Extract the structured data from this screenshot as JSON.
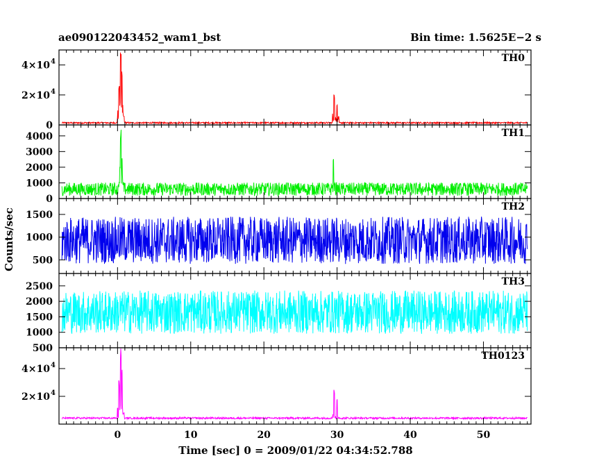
{
  "header": {
    "title": "ae090122043452_wam1_bst",
    "bin_time": "Bin time: 1.5625E−2 s"
  },
  "chart_data": {
    "type": "line",
    "xlabel": "Time [sec] 0 = 2009/01/22 04:34:52.788",
    "ylabel": "Counts/sec",
    "xlim": [
      -8,
      56.5
    ],
    "x_ticks": [
      0,
      10,
      20,
      30,
      40,
      50
    ],
    "x_ticks_label": [
      "0",
      "10",
      "20",
      "30",
      "40",
      "50"
    ],
    "panels": [
      {
        "label": "TH0",
        "color": "#ff0000",
        "ylim": [
          0,
          50000
        ],
        "y_ticks": [
          0,
          20000,
          40000
        ],
        "y_ticks_label": [
          "0",
          "2×10",
          "4×10"
        ],
        "y_ticks_exp": [
          "",
          "4",
          "4"
        ],
        "baseline": 1400,
        "noise": 500,
        "peaks": [
          {
            "t": 0.2,
            "v": 27000
          },
          {
            "t": 0.45,
            "v": 50000
          },
          {
            "t": 0.6,
            "v": 36000
          },
          {
            "t": 0.85,
            "v": 6000
          },
          {
            "t": 29.6,
            "v": 21000
          },
          {
            "t": 30.0,
            "v": 15000
          }
        ]
      },
      {
        "label": "TH1",
        "color": "#00ee00",
        "ylim": [
          0,
          4700
        ],
        "y_ticks": [
          0,
          1000,
          2000,
          3000,
          4000
        ],
        "y_ticks_label": [
          "0",
          "1000",
          "2000",
          "3000",
          "4000"
        ],
        "y_ticks_exp": [
          "",
          "",
          "",
          "",
          ""
        ],
        "baseline": 600,
        "noise": 420,
        "peaks": [
          {
            "t": 0.35,
            "v": 2200
          },
          {
            "t": 0.45,
            "v": 4500
          },
          {
            "t": 0.6,
            "v": 2800
          },
          {
            "t": 29.5,
            "v": 2600
          }
        ]
      },
      {
        "label": "TH2",
        "color": "#0000ee",
        "ylim": [
          200,
          1850
        ],
        "y_ticks": [
          500,
          1000,
          1500
        ],
        "y_ticks_label": [
          "500",
          "1000",
          "1500"
        ],
        "y_ticks_exp": [
          "",
          "",
          ""
        ],
        "baseline": 930,
        "noise": 520,
        "peaks": []
      },
      {
        "label": "TH3",
        "color": "#00ffff",
        "ylim": [
          500,
          2900
        ],
        "y_ticks": [
          500,
          1000,
          1500,
          2000,
          2500
        ],
        "y_ticks_label": [
          "500",
          "1000",
          "1500",
          "2000",
          "2500"
        ],
        "y_ticks_exp": [
          "",
          "",
          "",
          "",
          ""
        ],
        "baseline": 1650,
        "noise": 700,
        "peaks": []
      },
      {
        "label": "TH0123",
        "color": "#ff00ff",
        "ylim": [
          0,
          55000
        ],
        "y_ticks": [
          20000,
          40000
        ],
        "y_ticks_label": [
          "2×10",
          "4×10"
        ],
        "y_ticks_exp": [
          "4",
          "4"
        ],
        "baseline": 4300,
        "noise": 650,
        "peaks": [
          {
            "t": 0.2,
            "v": 32000
          },
          {
            "t": 0.45,
            "v": 55000
          },
          {
            "t": 0.6,
            "v": 40000
          },
          {
            "t": 0.85,
            "v": 9000
          },
          {
            "t": 29.6,
            "v": 25000
          },
          {
            "t": 30.0,
            "v": 18000
          }
        ]
      }
    ]
  }
}
